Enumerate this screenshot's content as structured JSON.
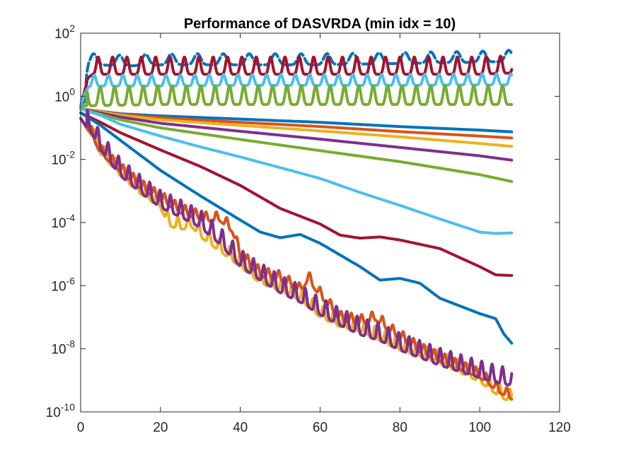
{
  "chart_data": {
    "type": "line",
    "title": "Performance of DASVRDA (min idx = 10)",
    "xlabel": "",
    "ylabel": "",
    "xlim": [
      0,
      120
    ],
    "ylim": [
      1e-10,
      100
    ],
    "yscale": "log",
    "grid": false,
    "legend": "none",
    "x_ticks": [
      0,
      20,
      40,
      60,
      80,
      100,
      120
    ],
    "y_ticks": [
      {
        "value": 1e-10,
        "base": "10",
        "exp": "-10"
      },
      {
        "value": 1e-08,
        "base": "10",
        "exp": "-8"
      },
      {
        "value": 1e-06,
        "base": "10",
        "exp": "-6"
      },
      {
        "value": 0.0001,
        "base": "10",
        "exp": "-4"
      },
      {
        "value": 0.01,
        "base": "10",
        "exp": "-2"
      },
      {
        "value": 1,
        "base": "10",
        "exp": "0"
      },
      {
        "value": 100,
        "base": "10",
        "exp": "2"
      }
    ],
    "series": [
      {
        "color": "#0072BD",
        "dash": true,
        "kind": "osc",
        "points": [
          [
            0,
            0.5
          ],
          [
            1,
            0.7
          ],
          [
            1.5,
            5
          ],
          [
            2,
            9
          ],
          [
            3,
            10
          ],
          [
            5,
            10
          ],
          [
            10,
            9
          ],
          [
            20,
            10
          ],
          [
            40,
            10
          ],
          [
            60,
            10
          ],
          [
            80,
            11
          ],
          [
            100,
            12
          ],
          [
            108,
            13
          ]
        ],
        "osc": {
          "amp": 0.35,
          "period": 6.5,
          "phase": 0
        }
      },
      {
        "color": "#A2142F",
        "dash": false,
        "kind": "osc",
        "points": [
          [
            0,
            0.5
          ],
          [
            1,
            1.5
          ],
          [
            2,
            4
          ],
          [
            3,
            5
          ],
          [
            20,
            5
          ],
          [
            40,
            5
          ],
          [
            60,
            5
          ],
          [
            80,
            5
          ],
          [
            100,
            5
          ],
          [
            108,
            5.5
          ]
        ],
        "osc": {
          "amp": 0.55,
          "period": 3.6,
          "phase": 1
        }
      },
      {
        "color": "#4DBEEE",
        "dash": false,
        "kind": "osc",
        "points": [
          [
            0,
            0.5
          ],
          [
            1,
            1.2
          ],
          [
            2,
            2
          ],
          [
            3,
            2.1
          ],
          [
            20,
            2.1
          ],
          [
            40,
            2.2
          ],
          [
            60,
            2.2
          ],
          [
            80,
            2.2
          ],
          [
            100,
            2.3
          ],
          [
            108,
            2.3
          ]
        ],
        "osc": {
          "amp": 0.35,
          "period": 3.6,
          "phase": 2
        }
      },
      {
        "color": "#77AC30",
        "dash": false,
        "kind": "osc",
        "points": [
          [
            0,
            0.45
          ],
          [
            1,
            0.5
          ],
          [
            2,
            0.5
          ],
          [
            20,
            0.55
          ],
          [
            40,
            0.55
          ],
          [
            60,
            0.55
          ],
          [
            80,
            0.55
          ],
          [
            100,
            0.55
          ],
          [
            108,
            0.55
          ]
        ],
        "osc": {
          "amp": 0.6,
          "period": 3.6,
          "phase": 0.5
        }
      },
      {
        "color": "#0072BD",
        "dash": false,
        "kind": "smooth",
        "points": [
          [
            0,
            0.4
          ],
          [
            10,
            0.28
          ],
          [
            20,
            0.24
          ],
          [
            40,
            0.19
          ],
          [
            60,
            0.15
          ],
          [
            80,
            0.11
          ],
          [
            100,
            0.085
          ],
          [
            108,
            0.075
          ]
        ]
      },
      {
        "color": "#D95319",
        "dash": false,
        "kind": "smooth",
        "points": [
          [
            0,
            0.4
          ],
          [
            10,
            0.27
          ],
          [
            20,
            0.21
          ],
          [
            40,
            0.15
          ],
          [
            60,
            0.11
          ],
          [
            80,
            0.076
          ],
          [
            100,
            0.055
          ],
          [
            108,
            0.048
          ]
        ]
      },
      {
        "color": "#EDB120",
        "dash": false,
        "kind": "smooth",
        "points": [
          [
            0,
            0.4
          ],
          [
            10,
            0.25
          ],
          [
            20,
            0.18
          ],
          [
            40,
            0.12
          ],
          [
            60,
            0.08
          ],
          [
            80,
            0.052
          ],
          [
            100,
            0.032
          ],
          [
            108,
            0.026
          ]
        ]
      },
      {
        "color": "#7E2F8E",
        "dash": false,
        "kind": "smooth",
        "points": [
          [
            0,
            0.4
          ],
          [
            10,
            0.22
          ],
          [
            20,
            0.14
          ],
          [
            40,
            0.078
          ],
          [
            60,
            0.044
          ],
          [
            80,
            0.024
          ],
          [
            100,
            0.013
          ],
          [
            108,
            0.0095
          ]
        ]
      },
      {
        "color": "#77AC30",
        "dash": false,
        "kind": "smooth",
        "points": [
          [
            0,
            0.4
          ],
          [
            10,
            0.18
          ],
          [
            20,
            0.1
          ],
          [
            40,
            0.043
          ],
          [
            60,
            0.019
          ],
          [
            80,
            0.0085
          ],
          [
            100,
            0.0033
          ],
          [
            108,
            0.002
          ]
        ]
      },
      {
        "color": "#4DBEEE",
        "dash": false,
        "kind": "smooth",
        "points": [
          [
            0,
            0.4
          ],
          [
            5,
            0.25
          ],
          [
            10,
            0.13
          ],
          [
            20,
            0.055
          ],
          [
            30,
            0.025
          ],
          [
            40,
            0.012
          ],
          [
            50,
            0.0055
          ],
          [
            60,
            0.0025
          ],
          [
            70,
            0.0009
          ],
          [
            80,
            0.00035
          ],
          [
            90,
            0.00013
          ],
          [
            100,
            5e-05
          ],
          [
            104,
            4.5e-05
          ],
          [
            108,
            4.7e-05
          ]
        ]
      },
      {
        "color": "#A2142F",
        "dash": false,
        "kind": "smooth",
        "points": [
          [
            0,
            0.3
          ],
          [
            5,
            0.15
          ],
          [
            10,
            0.07
          ],
          [
            20,
            0.02
          ],
          [
            30,
            0.006
          ],
          [
            40,
            0.0015
          ],
          [
            50,
            0.00028
          ],
          [
            60,
            9e-05
          ],
          [
            65,
            4e-05
          ],
          [
            70,
            3.2e-05
          ],
          [
            75,
            3.5e-05
          ],
          [
            80,
            2.8e-05
          ],
          [
            90,
            1.5e-05
          ],
          [
            100,
            4e-06
          ],
          [
            104,
            2.2e-06
          ],
          [
            108,
            2.1e-06
          ]
        ]
      },
      {
        "color": "#0072BD",
        "dash": false,
        "kind": "smooth",
        "points": [
          [
            0,
            0.3
          ],
          [
            5,
            0.12
          ],
          [
            10,
            0.04
          ],
          [
            20,
            0.0045
          ],
          [
            30,
            0.0007
          ],
          [
            40,
            0.00012
          ],
          [
            45,
            5e-05
          ],
          [
            50,
            3.3e-05
          ],
          [
            55,
            4.2e-05
          ],
          [
            60,
            2.2e-05
          ],
          [
            70,
            4e-06
          ],
          [
            75,
            1.5e-06
          ],
          [
            80,
            1.7e-06
          ],
          [
            85,
            1.2e-06
          ],
          [
            90,
            4e-07
          ],
          [
            100,
            1.3e-07
          ],
          [
            104,
            9e-08
          ],
          [
            106,
            3e-08
          ],
          [
            108,
            1.5e-08
          ]
        ]
      },
      {
        "color": "#EDB120",
        "dash": false,
        "kind": "osc",
        "points": [
          [
            0,
            0.2
          ],
          [
            3,
            0.05
          ],
          [
            5,
            0.015
          ],
          [
            10,
            0.003
          ],
          [
            15,
            0.0008
          ],
          [
            20,
            0.0003
          ],
          [
            22,
            8e-05
          ],
          [
            25,
            6e-05
          ],
          [
            28,
            7e-05
          ],
          [
            30,
            3.5e-05
          ],
          [
            35,
            1.2e-05
          ],
          [
            40,
            4e-06
          ],
          [
            45,
            1.2e-06
          ],
          [
            50,
            7e-07
          ],
          [
            55,
            3.5e-07
          ],
          [
            60,
            1e-07
          ],
          [
            65,
            5e-08
          ],
          [
            70,
            3.5e-08
          ],
          [
            75,
            1.8e-08
          ],
          [
            80,
            9e-09
          ],
          [
            90,
            3.5e-09
          ],
          [
            100,
            9e-10
          ],
          [
            105,
            3e-10
          ],
          [
            108,
            2e-10
          ]
        ],
        "osc": {
          "amp": 0.4,
          "period": 2.6,
          "phase": 0.3
        }
      },
      {
        "color": "#D95319",
        "dash": false,
        "kind": "osc",
        "points": [
          [
            0,
            0.2
          ],
          [
            3,
            0.05
          ],
          [
            5,
            0.015
          ],
          [
            10,
            0.004
          ],
          [
            15,
            0.0012
          ],
          [
            20,
            0.0005
          ],
          [
            25,
            0.0002
          ],
          [
            28,
            0.00015
          ],
          [
            31,
            0.00011
          ],
          [
            35,
            0.00011
          ],
          [
            38,
            5e-05
          ],
          [
            40,
            8e-06
          ],
          [
            45,
            2e-06
          ],
          [
            50,
            1.5e-06
          ],
          [
            55,
            6e-07
          ],
          [
            57,
            1.5e-06
          ],
          [
            60,
            4.5e-07
          ],
          [
            65,
            8e-08
          ],
          [
            70,
            6e-08
          ],
          [
            74,
            8e-08
          ],
          [
            78,
            3e-08
          ],
          [
            85,
            8e-09
          ],
          [
            90,
            4e-09
          ],
          [
            100,
            1.2e-09
          ],
          [
            105,
            4e-10
          ],
          [
            108,
            2.5e-10
          ]
        ],
        "osc": {
          "amp": 0.3,
          "period": 2.6,
          "phase": 1.1
        }
      },
      {
        "color": "#7E2F8E",
        "dash": false,
        "kind": "osc",
        "points": [
          [
            0,
            0.2
          ],
          [
            3,
            0.06
          ],
          [
            5,
            0.02
          ],
          [
            10,
            0.003
          ],
          [
            15,
            0.0009
          ],
          [
            20,
            0.0003
          ],
          [
            25,
            0.00015
          ],
          [
            30,
            7e-05
          ],
          [
            35,
            2e-05
          ],
          [
            40,
            4e-06
          ],
          [
            45,
            1.5e-06
          ],
          [
            50,
            6e-07
          ],
          [
            55,
            3e-07
          ],
          [
            60,
            1.2e-07
          ],
          [
            65,
            5.5e-08
          ],
          [
            70,
            2.8e-08
          ],
          [
            75,
            1.8e-08
          ],
          [
            80,
            9e-09
          ],
          [
            90,
            3e-09
          ],
          [
            100,
            1.2e-09
          ],
          [
            105,
            8e-10
          ],
          [
            108,
            7e-10
          ]
        ],
        "osc": {
          "amp": 0.55,
          "period": 2.6,
          "phase": 2.2
        }
      }
    ]
  }
}
